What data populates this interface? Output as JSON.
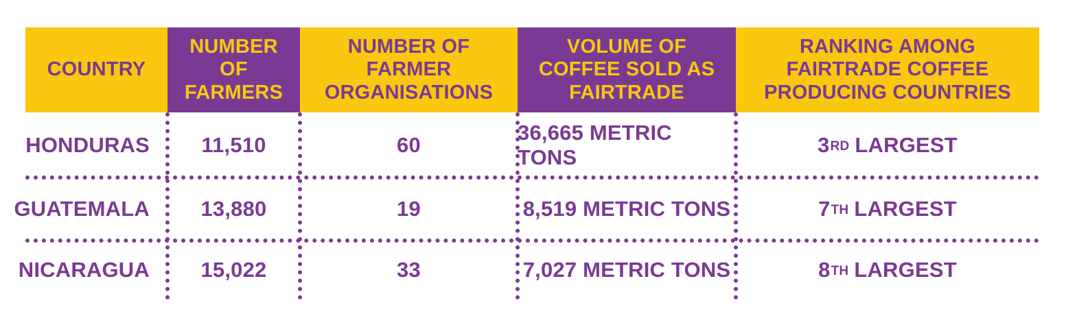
{
  "table": {
    "headers": [
      "COUNTRY",
      "NUMBER OF FARMERS",
      "NUMBER OF FARMER ORGANISATIONS",
      "VOLUME OF COFFEE SOLD AS FAIRTRADE",
      "RANKING AMONG FAIRTRADE COFFEE PRODUCING COUNTRIES"
    ],
    "rows": [
      {
        "country": "HONDURAS",
        "farmers": "11,510",
        "organisations": "60",
        "volume": "36,665 METRIC TONS",
        "rank_num": "3",
        "rank_suffix": "RD",
        "rank_word": "LARGEST"
      },
      {
        "country": "GUATEMALA",
        "farmers": "13,880",
        "organisations": "19",
        "volume": "8,519 METRIC TONS",
        "rank_num": "7",
        "rank_suffix": "TH",
        "rank_word": "LARGEST"
      },
      {
        "country": "NICARAGUA",
        "farmers": "15,022",
        "organisations": "33",
        "volume": "7,027 METRIC TONS",
        "rank_num": "8",
        "rank_suffix": "TH",
        "rank_word": "LARGEST"
      }
    ]
  },
  "colors": {
    "yellow": "#F9C80E",
    "purple": "#7A3A93",
    "background": "#FFFFFF"
  }
}
